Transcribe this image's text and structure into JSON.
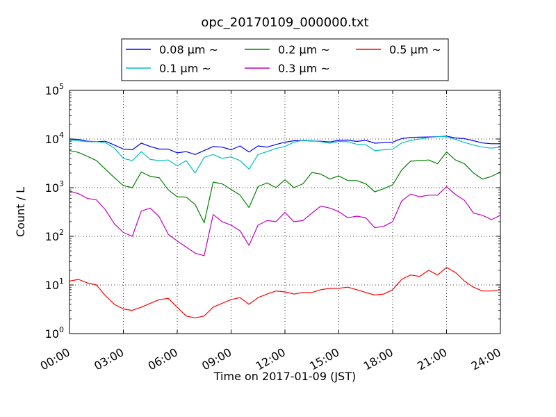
{
  "chart_data": {
    "type": "line",
    "title": "opc_20170109_000000.txt",
    "xlabel": "Time on 2017-01-09 (JST)",
    "ylabel": "Count / L",
    "yscale": "log",
    "ylim": [
      1,
      100000
    ],
    "xlim": [
      0,
      24
    ],
    "grid": true,
    "legend_position": "top-center",
    "x_tick_labels": [
      "00:00",
      "03:00",
      "06:00",
      "09:00",
      "12:00",
      "15:00",
      "18:00",
      "21:00",
      "24:00"
    ],
    "x_ticks": [
      0,
      3,
      6,
      9,
      12,
      15,
      18,
      21,
      24
    ],
    "y_tick_labels": [
      {
        "base": "10",
        "exp": "0"
      },
      {
        "base": "10",
        "exp": "1"
      },
      {
        "base": "10",
        "exp": "2"
      },
      {
        "base": "10",
        "exp": "3"
      },
      {
        "base": "10",
        "exp": "4"
      },
      {
        "base": "10",
        "exp": "5"
      }
    ],
    "y_ticks": [
      1,
      10,
      100,
      1000,
      10000,
      100000
    ],
    "series": [
      {
        "name": "0.08 μm ~",
        "color": "#0000ff",
        "x": [
          0,
          0.5,
          1,
          1.5,
          2,
          2.5,
          3,
          3.5,
          4,
          4.5,
          5,
          5.5,
          6,
          6.5,
          7,
          7.5,
          8,
          8.5,
          9,
          9.5,
          10,
          10.5,
          11,
          11.5,
          12,
          12.5,
          13,
          13.5,
          14,
          14.5,
          15,
          15.5,
          16,
          16.5,
          17,
          17.5,
          18,
          18.5,
          19,
          19.5,
          20,
          20.5,
          21,
          21.5,
          22,
          22.5,
          23,
          23.5,
          24
        ],
        "y": [
          10000,
          9800,
          9000,
          8800,
          9000,
          7500,
          6200,
          6000,
          8200,
          7000,
          6200,
          6200,
          5200,
          5500,
          4800,
          5800,
          7000,
          6800,
          6000,
          7200,
          5400,
          7200,
          6800,
          7700,
          8600,
          9200,
          9300,
          9100,
          9000,
          8700,
          9400,
          9500,
          8900,
          9400,
          8200,
          8400,
          8600,
          10200,
          10800,
          10900,
          11000,
          11200,
          11400,
          10500,
          10200,
          9200,
          8300,
          8000,
          8000
        ]
      },
      {
        "name": "0.1 μm ~",
        "color": "#00bfbf",
        "x": [
          0,
          0.5,
          1,
          1.5,
          2,
          2.5,
          3,
          3.5,
          4,
          4.5,
          5,
          5.5,
          6,
          6.5,
          7,
          7.5,
          8,
          8.5,
          9,
          9.5,
          10,
          10.5,
          11,
          11.5,
          12,
          12.5,
          13,
          13.5,
          14,
          14.5,
          15,
          15.5,
          16,
          16.5,
          17,
          17.5,
          18,
          18.5,
          19,
          19.5,
          20,
          20.5,
          21,
          21.5,
          22,
          22.5,
          23,
          23.5,
          24
        ],
        "y": [
          9500,
          9200,
          8800,
          8800,
          8400,
          6500,
          4000,
          3600,
          5500,
          3800,
          3600,
          3700,
          2800,
          3600,
          2000,
          4200,
          4800,
          4000,
          4300,
          3600,
          2400,
          4800,
          5500,
          6400,
          7000,
          8600,
          9400,
          9200,
          8800,
          8200,
          8900,
          8800,
          7800,
          7600,
          5800,
          6000,
          6200,
          8300,
          9300,
          10000,
          10700,
          11200,
          11200,
          9800,
          8500,
          7500,
          6800,
          6500,
          6800
        ]
      },
      {
        "name": "0.2 μm ~",
        "color": "#008000",
        "x": [
          0,
          0.5,
          1,
          1.5,
          2,
          2.5,
          3,
          3.5,
          4,
          4.5,
          5,
          5.5,
          6,
          6.5,
          7,
          7.5,
          8,
          8.5,
          9,
          9.5,
          10,
          10.5,
          11,
          11.5,
          12,
          12.5,
          13,
          13.5,
          14,
          14.5,
          15,
          15.5,
          16,
          16.5,
          17,
          17.5,
          18,
          18.5,
          19,
          19.5,
          20,
          20.5,
          21,
          21.5,
          22,
          22.5,
          23,
          23.5,
          24
        ],
        "y": [
          5800,
          5300,
          4400,
          3600,
          2400,
          1600,
          1100,
          1000,
          2100,
          1700,
          1600,
          900,
          650,
          640,
          450,
          190,
          1300,
          1200,
          920,
          700,
          390,
          1050,
          1250,
          1000,
          1450,
          1000,
          1200,
          2050,
          1900,
          1500,
          1750,
          1400,
          1400,
          1200,
          820,
          950,
          1150,
          2300,
          3500,
          3600,
          3700,
          3100,
          5400,
          3700,
          3100,
          2000,
          1500,
          1700,
          2100
        ]
      },
      {
        "name": "0.3 μm ~",
        "color": "#bf00bf",
        "x": [
          0,
          0.5,
          1,
          1.5,
          2,
          2.5,
          3,
          3.5,
          4,
          4.5,
          5,
          5.5,
          6,
          6.5,
          7,
          7.5,
          8,
          8.5,
          9,
          9.5,
          10,
          10.5,
          11,
          11.5,
          12,
          12.5,
          13,
          13.5,
          14,
          14.5,
          15,
          15.5,
          16,
          16.5,
          17,
          17.5,
          18,
          18.5,
          19,
          19.5,
          20,
          20.5,
          21,
          21.5,
          22,
          22.5,
          23,
          23.5,
          24
        ],
        "y": [
          850,
          750,
          600,
          560,
          350,
          180,
          120,
          100,
          330,
          380,
          250,
          110,
          80,
          60,
          45,
          40,
          280,
          200,
          170,
          130,
          65,
          170,
          210,
          200,
          310,
          200,
          210,
          300,
          420,
          380,
          320,
          240,
          260,
          240,
          150,
          160,
          200,
          530,
          740,
          650,
          700,
          700,
          1050,
          720,
          550,
          300,
          270,
          220,
          270
        ]
      },
      {
        "name": "0.5 μm ~",
        "color": "#ff0000",
        "x": [
          0,
          0.5,
          1,
          1.5,
          2,
          2.5,
          3,
          3.5,
          4,
          4.5,
          5,
          5.5,
          6,
          6.5,
          7,
          7.5,
          8,
          8.5,
          9,
          9.5,
          10,
          10.5,
          11,
          11.5,
          12,
          12.5,
          13,
          13.5,
          14,
          14.5,
          15,
          15.5,
          16,
          16.5,
          17,
          17.5,
          18,
          18.5,
          19,
          19.5,
          20,
          20.5,
          21,
          21.5,
          22,
          22.5,
          23,
          23.5,
          24
        ],
        "y": [
          12,
          13,
          11,
          10,
          6,
          4,
          3.2,
          3,
          3.5,
          4.2,
          5,
          5.3,
          3.5,
          2.3,
          2.1,
          2.3,
          3.5,
          4.2,
          5,
          5.5,
          4,
          5.5,
          6.5,
          7.5,
          7.2,
          6.5,
          7,
          7,
          8,
          8.5,
          8.5,
          9,
          8,
          7,
          6.2,
          6.5,
          8,
          13,
          16,
          15,
          20,
          16,
          23,
          18,
          12,
          9,
          7.5,
          7.5,
          8
        ]
      }
    ]
  }
}
